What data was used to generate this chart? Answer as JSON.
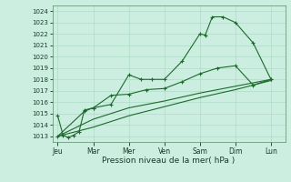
{
  "bg_color": "#cceee0",
  "line_color": "#1a6b2a",
  "grid_color": "#a8d8c0",
  "xlabel": "Pression niveau de la mer( hPa )",
  "xtick_labels": [
    "Jeu",
    "Mar",
    "Mer",
    "Ven",
    "Sam",
    "Dim",
    "Lun"
  ],
  "x_positions": [
    0,
    1,
    2,
    3,
    4,
    5,
    6
  ],
  "ylim": [
    1012.5,
    1024.5
  ],
  "yticks": [
    1013,
    1014,
    1015,
    1016,
    1017,
    1018,
    1019,
    1020,
    1021,
    1022,
    1023,
    1024
  ],
  "line1": {
    "x": [
      0,
      0.15,
      0.3,
      0.45,
      0.6,
      0.75,
      1.0,
      1.5,
      2.0,
      2.35,
      2.65,
      3.0,
      3.5,
      4.0,
      4.15,
      4.35,
      4.65,
      5.0,
      5.5,
      6.0
    ],
    "y": [
      1014.8,
      1013.1,
      1012.9,
      1013.1,
      1013.4,
      1015.3,
      1015.5,
      1015.8,
      1018.4,
      1018.0,
      1018.0,
      1018.0,
      1019.6,
      1022.0,
      1021.9,
      1023.5,
      1023.5,
      1023.0,
      1021.2,
      1018.0
    ]
  },
  "line2": {
    "x": [
      0,
      0.75,
      1.0,
      1.5,
      2.0,
      2.5,
      3.0,
      3.5,
      4.0,
      4.5,
      5.0,
      5.5,
      6.0
    ],
    "y": [
      1013.0,
      1015.2,
      1015.5,
      1016.6,
      1016.7,
      1017.1,
      1017.2,
      1017.8,
      1018.5,
      1019.0,
      1019.2,
      1017.5,
      1018.0
    ]
  },
  "line3": {
    "x": [
      0,
      1.0,
      2.0,
      3.0,
      4.0,
      5.0,
      6.0
    ],
    "y": [
      1013.0,
      1014.5,
      1015.5,
      1016.1,
      1016.8,
      1017.4,
      1018.0
    ]
  },
  "line4": {
    "x": [
      0,
      1.0,
      2.0,
      3.0,
      4.0,
      5.0,
      6.0
    ],
    "y": [
      1013.0,
      1013.8,
      1014.8,
      1015.6,
      1016.4,
      1017.1,
      1017.9
    ]
  }
}
